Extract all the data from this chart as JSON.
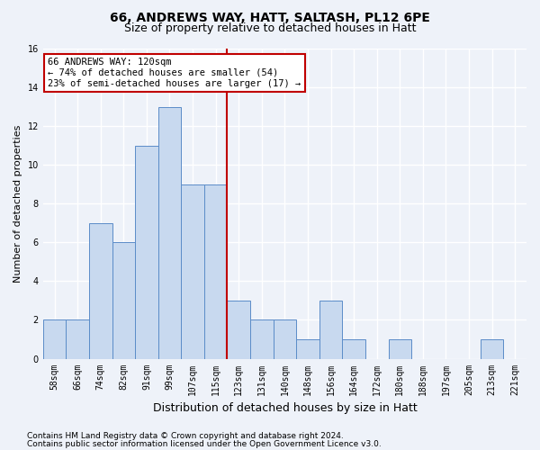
{
  "title1": "66, ANDREWS WAY, HATT, SALTASH, PL12 6PE",
  "title2": "Size of property relative to detached houses in Hatt",
  "xlabel": "Distribution of detached houses by size in Hatt",
  "ylabel": "Number of detached properties",
  "bar_labels": [
    "58sqm",
    "66sqm",
    "74sqm",
    "82sqm",
    "91sqm",
    "99sqm",
    "107sqm",
    "115sqm",
    "123sqm",
    "131sqm",
    "140sqm",
    "148sqm",
    "156sqm",
    "164sqm",
    "172sqm",
    "180sqm",
    "188sqm",
    "197sqm",
    "205sqm",
    "213sqm",
    "221sqm"
  ],
  "bar_heights": [
    2,
    2,
    7,
    6,
    11,
    13,
    9,
    9,
    3,
    2,
    2,
    1,
    3,
    1,
    0,
    1,
    0,
    0,
    0,
    1,
    0
  ],
  "bar_color": "#c8d9ef",
  "bar_edge_color": "#5b8cc8",
  "vline_x": 7.5,
  "vline_color": "#c00000",
  "annotation_line1": "66 ANDREWS WAY: 120sqm",
  "annotation_line2": "← 74% of detached houses are smaller (54)",
  "annotation_line3": "23% of semi-detached houses are larger (17) →",
  "annotation_box_color": "#ffffff",
  "annotation_box_edge": "#c00000",
  "ylim": [
    0,
    16
  ],
  "yticks": [
    0,
    2,
    4,
    6,
    8,
    10,
    12,
    14,
    16
  ],
  "footer1": "Contains HM Land Registry data © Crown copyright and database right 2024.",
  "footer2": "Contains public sector information licensed under the Open Government Licence v3.0.",
  "bg_color": "#eef2f9",
  "plot_bg_color": "#eef2f9",
  "grid_color": "#ffffff",
  "title1_fontsize": 10,
  "title2_fontsize": 9,
  "axis_label_fontsize": 8,
  "tick_fontsize": 7,
  "annotation_fontsize": 7.5,
  "footer_fontsize": 6.5
}
